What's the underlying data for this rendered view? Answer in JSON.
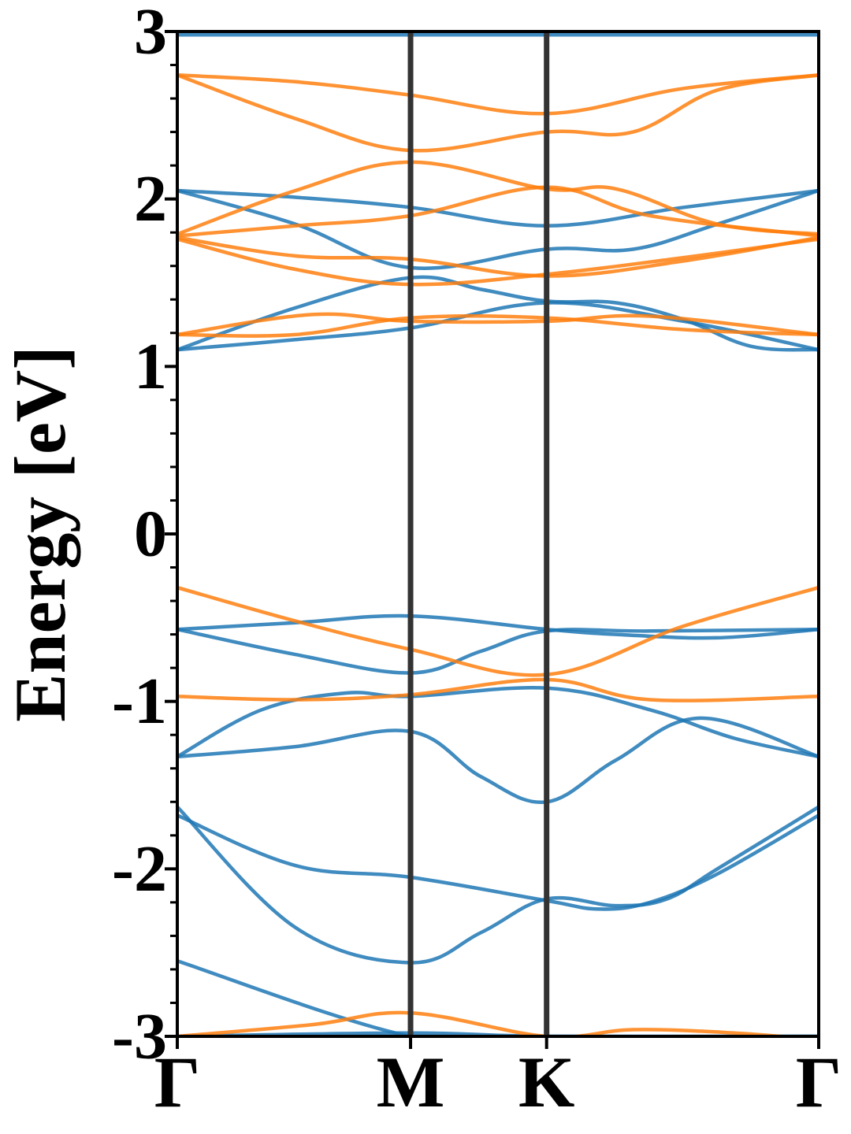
{
  "chart_data": {
    "type": "line",
    "title": "",
    "xlabel": "",
    "ylabel": "Energy [eV]",
    "ylim": [
      -3,
      3
    ],
    "xlim": [
      0,
      3.8
    ],
    "yticks": [
      {
        "value": 3,
        "label": "3"
      },
      {
        "value": 2,
        "label": "2"
      },
      {
        "value": 1,
        "label": "1"
      },
      {
        "value": 0,
        "label": "0"
      },
      {
        "value": -1,
        "label": "-1"
      },
      {
        "value": -2,
        "label": "-2"
      },
      {
        "value": -3,
        "label": "-3"
      }
    ],
    "xticks": [
      {
        "value": 0,
        "label": "Γ"
      },
      {
        "value": 1.382,
        "label": "M"
      },
      {
        "value": 2.188,
        "label": "K"
      },
      {
        "value": 3.8,
        "label": "Γ"
      }
    ],
    "grid": false,
    "colors": {
      "spin_up": "#1f77b4",
      "spin_down": "#ff7f0e",
      "kline": "#333333"
    },
    "series": [
      {
        "color": "#1f77b4",
        "x": [
          0,
          1.382,
          2.188,
          3.8
        ],
        "y": [
          -2.55,
          -3.0,
          -3.0,
          -3.0
        ]
      },
      {
        "color": "#1f77b4",
        "x": [
          0,
          1.382,
          2.188,
          3.8
        ],
        "y": [
          -3.0,
          -2.98,
          -3.0,
          -3.0
        ]
      },
      {
        "color": "#1f77b4",
        "x": [
          0,
          0.7,
          1.382,
          1.8,
          2.188,
          2.6,
          2.9,
          3.2,
          3.8
        ],
        "y": [
          -1.63,
          -2.35,
          -2.56,
          -2.38,
          -2.18,
          -2.22,
          -2.18,
          -2.0,
          -1.63
        ]
      },
      {
        "color": "#1f77b4",
        "x": [
          0,
          0.7,
          1.382,
          2.188,
          2.5,
          2.8,
          3.2,
          3.8
        ],
        "y": [
          -1.68,
          -1.98,
          -2.05,
          -2.19,
          -2.24,
          -2.2,
          -2.03,
          -1.68
        ]
      },
      {
        "color": "#1f77b4",
        "x": [
          0,
          0.7,
          1.382,
          1.8,
          2.188,
          2.6,
          3.1,
          3.8
        ],
        "y": [
          -1.33,
          -1.27,
          -1.18,
          -1.45,
          -1.6,
          -1.35,
          -1.1,
          -1.33
        ]
      },
      {
        "color": "#1f77b4",
        "x": [
          0,
          0.5,
          1.0,
          1.382,
          2.188,
          2.8,
          3.3,
          3.8
        ],
        "y": [
          -1.33,
          -1.05,
          -0.95,
          -0.97,
          -0.92,
          -1.05,
          -1.22,
          -1.33
        ]
      },
      {
        "color": "#1f77b4",
        "x": [
          0,
          0.7,
          1.382,
          1.8,
          2.188,
          2.8,
          3.8
        ],
        "y": [
          -0.57,
          -0.72,
          -0.83,
          -0.7,
          -0.58,
          -0.58,
          -0.57
        ]
      },
      {
        "color": "#1f77b4",
        "x": [
          0,
          0.7,
          1.382,
          2.188,
          2.6,
          3.2,
          3.8
        ],
        "y": [
          -0.57,
          -0.53,
          -0.49,
          -0.57,
          -0.6,
          -0.62,
          -0.57
        ]
      },
      {
        "color": "#1f77b4",
        "x": [
          0,
          0.7,
          1.382,
          2.188,
          3.0,
          3.8
        ],
        "y": [
          1.1,
          1.16,
          1.23,
          1.38,
          1.27,
          1.1
        ]
      },
      {
        "color": "#1f77b4",
        "x": [
          0,
          0.7,
          1.382,
          1.8,
          2.188,
          2.6,
          3.0,
          3.4,
          3.8
        ],
        "y": [
          1.1,
          1.35,
          1.53,
          1.46,
          1.39,
          1.38,
          1.28,
          1.12,
          1.1
        ]
      },
      {
        "color": "#1f77b4",
        "x": [
          0,
          0.7,
          1.382,
          2.188,
          2.7,
          3.2,
          3.8
        ],
        "y": [
          2.05,
          1.85,
          1.59,
          1.7,
          1.7,
          1.85,
          2.05
        ]
      },
      {
        "color": "#1f77b4",
        "x": [
          0,
          0.7,
          1.382,
          2.188,
          3.0,
          3.8
        ],
        "y": [
          2.05,
          2.01,
          1.95,
          1.84,
          1.95,
          2.05
        ]
      },
      {
        "color": "#1f77b4",
        "x": [
          0,
          3.8
        ],
        "y": [
          2.98,
          2.98
        ]
      },
      {
        "color": "#ff7f0e",
        "x": [
          0,
          0.8,
          1.382,
          2.188,
          2.7,
          3.3,
          3.8
        ],
        "y": [
          -3.0,
          -2.93,
          -2.86,
          -3.0,
          -2.96,
          -2.98,
          -3.02
        ]
      },
      {
        "color": "#ff7f0e",
        "x": [
          0,
          0.7,
          1.382,
          2.188,
          2.8,
          3.8
        ],
        "y": [
          -0.97,
          -0.99,
          -0.96,
          -0.87,
          -0.99,
          -0.97
        ]
      },
      {
        "color": "#ff7f0e",
        "x": [
          0,
          0.7,
          1.382,
          2.188,
          3.0,
          3.8
        ],
        "y": [
          -0.32,
          -0.52,
          -0.69,
          -0.84,
          -0.55,
          -0.32
        ]
      },
      {
        "color": "#ff7f0e",
        "x": [
          0,
          0.7,
          1.382,
          2.188,
          3.0,
          3.8
        ],
        "y": [
          1.19,
          1.19,
          1.29,
          1.29,
          1.22,
          1.19
        ]
      },
      {
        "color": "#ff7f0e",
        "x": [
          0,
          0.8,
          1.382,
          2.188,
          2.8,
          3.8
        ],
        "y": [
          1.19,
          1.31,
          1.27,
          1.27,
          1.3,
          1.19
        ]
      },
      {
        "color": "#ff7f0e",
        "x": [
          0,
          0.7,
          1.382,
          2.188,
          3.0,
          3.8
        ],
        "y": [
          1.76,
          1.58,
          1.49,
          1.55,
          1.65,
          1.76
        ]
      },
      {
        "color": "#ff7f0e",
        "x": [
          0,
          0.7,
          1.382,
          2.188,
          3.0,
          3.8
        ],
        "y": [
          1.77,
          1.66,
          1.64,
          1.54,
          1.63,
          1.77
        ]
      },
      {
        "color": "#ff7f0e",
        "x": [
          0,
          0.7,
          1.382,
          2.188,
          2.8,
          3.8
        ],
        "y": [
          1.78,
          1.84,
          1.9,
          2.07,
          1.9,
          1.78
        ]
      },
      {
        "color": "#ff7f0e",
        "x": [
          0,
          0.7,
          1.382,
          2.188,
          2.6,
          3.2,
          3.8
        ],
        "y": [
          1.79,
          2.05,
          2.22,
          2.06,
          2.06,
          1.85,
          1.79
        ]
      },
      {
        "color": "#ff7f0e",
        "x": [
          0,
          0.7,
          1.382,
          2.188,
          2.7,
          3.2,
          3.8
        ],
        "y": [
          2.74,
          2.48,
          2.29,
          2.4,
          2.4,
          2.65,
          2.74
        ]
      },
      {
        "color": "#ff7f0e",
        "x": [
          0,
          0.7,
          1.382,
          2.188,
          3.0,
          3.8
        ],
        "y": [
          2.74,
          2.7,
          2.62,
          2.51,
          2.66,
          2.74
        ]
      }
    ]
  }
}
